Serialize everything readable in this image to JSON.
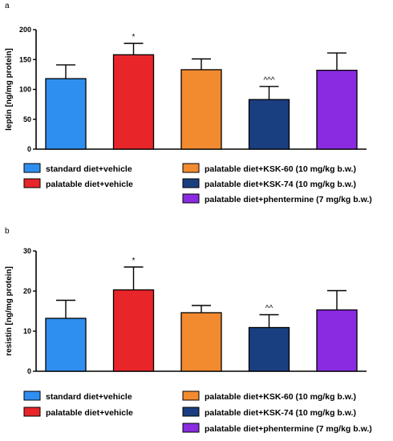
{
  "chart_data": [
    {
      "type": "bar",
      "panel": "a",
      "ylabel": "leptin [ng/mg protein]",
      "ylim": [
        0,
        200
      ],
      "yticks": [
        0,
        50,
        100,
        150,
        200
      ],
      "grid": false,
      "legend_placement": "bottom",
      "series": [
        {
          "name": "standard diet+vehicle",
          "color": "#2f8ff0",
          "value": 118,
          "error": 23,
          "annotation": ""
        },
        {
          "name": "palatable diet+vehicle",
          "color": "#e8262a",
          "value": 158,
          "error": 19,
          "annotation": "*"
        },
        {
          "name": "palatable diet+KSK-60 (10 mg/kg b.w.)",
          "color": "#f28a30",
          "value": 133,
          "error": 18,
          "annotation": ""
        },
        {
          "name": "palatable diet+KSK-74 (10 mg/kg b.w.)",
          "color": "#1a3f80",
          "value": 83,
          "error": 22,
          "annotation": "^^^"
        },
        {
          "name": "palatable diet+phentermine (7 mg/kg b.w.)",
          "color": "#8a2be2",
          "value": 132,
          "error": 29,
          "annotation": ""
        }
      ]
    },
    {
      "type": "bar",
      "panel": "b",
      "ylabel": "resistin [ng/mg protein]",
      "ylim": [
        0,
        30
      ],
      "yticks": [
        0,
        10,
        20,
        30
      ],
      "grid": false,
      "legend_placement": "bottom",
      "series": [
        {
          "name": "standard diet+vehicle",
          "color": "#2f8ff0",
          "value": 13.2,
          "error": 4.5,
          "annotation": ""
        },
        {
          "name": "palatable diet+vehicle",
          "color": "#e8262a",
          "value": 20.3,
          "error": 5.7,
          "annotation": "*"
        },
        {
          "name": "palatable diet+KSK-60 (10 mg/kg b.w.)",
          "color": "#f28a30",
          "value": 14.6,
          "error": 1.8,
          "annotation": ""
        },
        {
          "name": "palatable diet+KSK-74 (10 mg/kg b.w.)",
          "color": "#1a3f80",
          "value": 10.9,
          "error": 3.2,
          "annotation": "^^"
        },
        {
          "name": "palatable diet+phentermine (7 mg/kg b.w.)",
          "color": "#8a2be2",
          "value": 15.3,
          "error": 4.8,
          "annotation": ""
        }
      ]
    }
  ]
}
